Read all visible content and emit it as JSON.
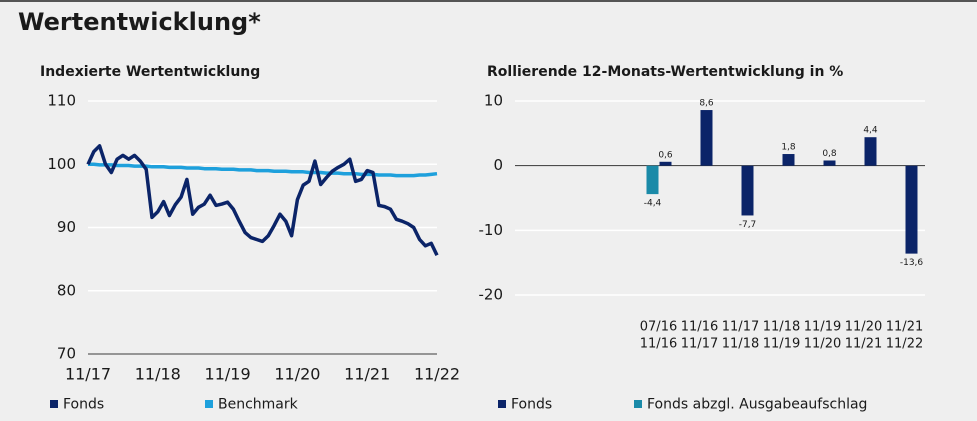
{
  "title": "Wertentwicklung*",
  "chart_data": [
    {
      "type": "line",
      "title": "Indexierte Wertentwicklung",
      "x": [
        "11/17",
        "12/17",
        "01/18",
        "02/18",
        "03/18",
        "04/18",
        "05/18",
        "06/18",
        "07/18",
        "08/18",
        "09/18",
        "10/18",
        "11/18",
        "12/18",
        "01/19",
        "02/19",
        "03/19",
        "04/19",
        "05/19",
        "06/19",
        "07/19",
        "08/19",
        "09/19",
        "10/19",
        "11/19",
        "12/19",
        "01/20",
        "02/20",
        "03/20",
        "04/20",
        "05/20",
        "06/20",
        "07/20",
        "08/20",
        "09/20",
        "10/20",
        "11/20",
        "12/20",
        "01/21",
        "02/21",
        "03/21",
        "04/21",
        "05/21",
        "06/21",
        "07/21",
        "08/21",
        "09/21",
        "10/21",
        "11/21",
        "12/21",
        "01/22",
        "02/22",
        "03/22",
        "04/22",
        "05/22",
        "06/22",
        "07/22",
        "08/22",
        "09/22",
        "10/22",
        "11/22"
      ],
      "xticks": [
        "11/17",
        "11/18",
        "11/19",
        "11/20",
        "11/21",
        "11/22"
      ],
      "ylim": [
        70,
        110
      ],
      "yticks": [
        70,
        80,
        90,
        100,
        110
      ],
      "grid": true,
      "series": [
        {
          "name": "Fonds",
          "color": "#0b2468",
          "values": [
            100,
            102,
            102.9,
            100,
            98.7,
            100.8,
            101.4,
            100.8,
            101.4,
            100.5,
            99.2,
            91.6,
            92.5,
            94.1,
            91.9,
            93.6,
            94.8,
            97.6,
            92.1,
            93.2,
            93.7,
            95.1,
            93.5,
            93.7,
            94,
            92.9,
            91,
            89.2,
            88.4,
            88.1,
            87.8,
            88.7,
            90.3,
            92.1,
            91,
            88.7,
            94.4,
            96.7,
            97.3,
            100.5,
            96.8,
            97.9,
            98.9,
            99.5,
            100,
            100.8,
            97.3,
            97.6,
            99,
            98.7,
            93.5,
            93.3,
            92.9,
            91.3,
            91,
            90.6,
            90,
            88.1,
            87.1,
            87.5,
            85.6
          ]
        },
        {
          "name": "Benchmark",
          "color": "#1ea0dc",
          "values": [
            100,
            100,
            99.9,
            99.9,
            99.9,
            99.8,
            99.8,
            99.8,
            99.7,
            99.7,
            99.7,
            99.6,
            99.6,
            99.6,
            99.5,
            99.5,
            99.5,
            99.4,
            99.4,
            99.4,
            99.3,
            99.3,
            99.3,
            99.2,
            99.2,
            99.2,
            99.1,
            99.1,
            99.1,
            99,
            99,
            99,
            98.9,
            98.9,
            98.9,
            98.8,
            98.8,
            98.8,
            98.7,
            98.7,
            98.7,
            98.6,
            98.6,
            98.6,
            98.5,
            98.5,
            98.5,
            98.4,
            98.4,
            98.4,
            98.3,
            98.3,
            98.3,
            98.2,
            98.2,
            98.2,
            98.2,
            98.3,
            98.3,
            98.4,
            98.5
          ]
        }
      ]
    },
    {
      "type": "bar",
      "title": "Rollierende 12-Monats-Wertentwicklung in %",
      "categories": [
        null,
        null,
        null,
        [
          "07/16",
          "11/16"
        ],
        [
          "11/16",
          "11/17"
        ],
        [
          "11/17",
          "11/18"
        ],
        [
          "11/18",
          "11/19"
        ],
        [
          "11/19",
          "11/20"
        ],
        [
          "11/20",
          "11/21"
        ],
        [
          "11/21",
          "11/22"
        ]
      ],
      "ylim": [
        -20,
        10
      ],
      "yticks": [
        -20,
        -10,
        0,
        10
      ],
      "grid": true,
      "series": [
        {
          "name": "Fonds abzgl. Ausgabeaufschlag",
          "color": "#1a8aa8",
          "values": [
            null,
            null,
            null,
            -4.4,
            null,
            null,
            null,
            null,
            null,
            null
          ],
          "value_labels": [
            null,
            null,
            null,
            "-4,4",
            null,
            null,
            null,
            null,
            null,
            null
          ]
        },
        {
          "name": "Fonds",
          "color": "#0b2468",
          "values": [
            null,
            null,
            null,
            0.6,
            8.6,
            -7.7,
            1.8,
            0.8,
            4.4,
            -13.6
          ],
          "value_labels": [
            null,
            null,
            null,
            "0,6",
            "8,6",
            "-7,7",
            "1,8",
            "0,8",
            "4,4",
            "-13,6"
          ]
        }
      ]
    }
  ]
}
